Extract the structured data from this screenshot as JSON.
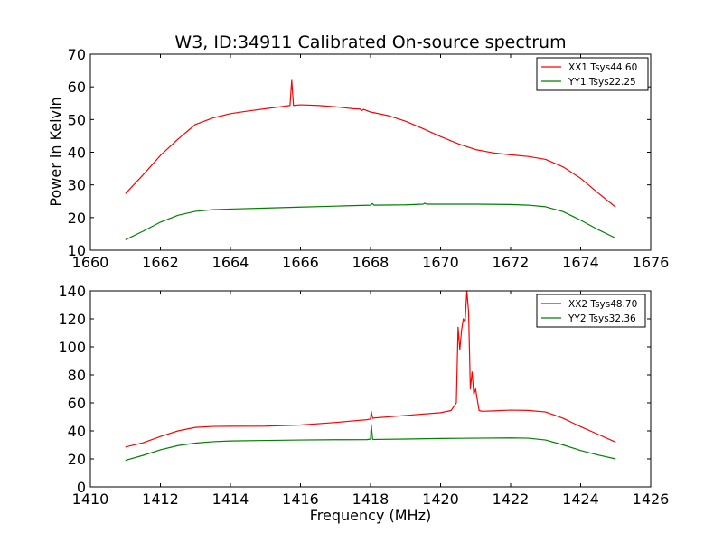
{
  "figure": {
    "title": "W3, ID:34911 Calibrated On-source spectrum",
    "ylabel": "Power in Kelvin",
    "xlabel": "Frequency (MHz)"
  },
  "colors": {
    "red": "#ff0000",
    "green": "#008000"
  },
  "chart_data": [
    {
      "type": "line",
      "title": "W3, ID:34911 Calibrated On-source spectrum",
      "ylabel": "Power in Kelvin",
      "xlabel": "",
      "xlim": [
        1660,
        1676
      ],
      "ylim": [
        10,
        70
      ],
      "xticks": [
        "1660",
        "1662",
        "1664",
        "1666",
        "1668",
        "1670",
        "1672",
        "1674",
        "1676"
      ],
      "yticks": [
        "10",
        "20",
        "30",
        "40",
        "50",
        "60",
        "70"
      ],
      "grid": false,
      "legend_position": "top-right",
      "series": [
        {
          "name": "XX1 Tsys44.60",
          "color": "#ff0000",
          "x": [
            1661.0,
            1661.5,
            1662.0,
            1662.5,
            1663.0,
            1663.5,
            1664.0,
            1664.5,
            1665.0,
            1665.5,
            1665.7,
            1665.75,
            1665.8,
            1666.0,
            1666.5,
            1667.0,
            1667.5,
            1667.7,
            1667.75,
            1667.8,
            1668.0,
            1668.5,
            1669.0,
            1669.5,
            1670.0,
            1670.5,
            1671.0,
            1671.5,
            1672.0,
            1672.5,
            1673.0,
            1673.5,
            1674.0,
            1674.5,
            1675.0
          ],
          "y": [
            27.3,
            33.0,
            39.0,
            44.0,
            48.5,
            50.5,
            51.8,
            52.6,
            53.3,
            54.0,
            54.3,
            62.0,
            54.3,
            54.5,
            54.3,
            53.9,
            53.3,
            53.2,
            52.7,
            53.1,
            52.3,
            51.2,
            49.5,
            47.2,
            44.8,
            42.6,
            40.8,
            39.8,
            39.2,
            38.7,
            37.8,
            35.5,
            32.0,
            27.5,
            23.2
          ]
        },
        {
          "name": "YY1 Tsys22.25",
          "color": "#008000",
          "x": [
            1661.0,
            1661.5,
            1662.0,
            1662.5,
            1663.0,
            1663.5,
            1664.0,
            1665.0,
            1666.0,
            1667.0,
            1668.0,
            1668.05,
            1668.1,
            1669.0,
            1669.5,
            1669.55,
            1669.6,
            1670.0,
            1671.0,
            1672.0,
            1672.5,
            1673.0,
            1673.5,
            1674.0,
            1674.5,
            1675.0
          ],
          "y": [
            13.2,
            15.8,
            18.6,
            20.7,
            21.9,
            22.4,
            22.6,
            22.9,
            23.2,
            23.5,
            23.8,
            24.3,
            23.8,
            23.9,
            24.1,
            24.4,
            24.1,
            24.1,
            24.1,
            24.0,
            23.8,
            23.3,
            21.8,
            19.2,
            16.3,
            13.7
          ]
        }
      ]
    },
    {
      "type": "line",
      "title": "",
      "ylabel": "",
      "xlabel": "Frequency (MHz)",
      "xlim": [
        1410,
        1426
      ],
      "ylim": [
        0,
        140
      ],
      "xticks": [
        "1410",
        "1412",
        "1414",
        "1416",
        "1418",
        "1420",
        "1422",
        "1424",
        "1426"
      ],
      "yticks": [
        "0",
        "20",
        "40",
        "60",
        "80",
        "100",
        "120",
        "140"
      ],
      "grid": false,
      "legend_position": "top-right",
      "series": [
        {
          "name": "XX2 Tsys48.70",
          "color": "#ff0000",
          "x": [
            1411.0,
            1411.5,
            1412.0,
            1412.5,
            1413.0,
            1413.5,
            1414.0,
            1415.0,
            1416.0,
            1417.0,
            1417.9,
            1418.0,
            1418.02,
            1418.06,
            1418.1,
            1419.0,
            1420.0,
            1420.3,
            1420.45,
            1420.5,
            1420.55,
            1420.6,
            1420.65,
            1420.7,
            1420.75,
            1420.8,
            1420.85,
            1420.9,
            1420.95,
            1421.0,
            1421.05,
            1421.1,
            1421.15,
            1421.2,
            1421.5,
            1422.0,
            1422.5,
            1423.0,
            1423.5,
            1424.0,
            1424.5,
            1425.0
          ],
          "y": [
            28.5,
            31.5,
            36.0,
            40.0,
            42.5,
            43.2,
            43.3,
            43.4,
            44.2,
            46.0,
            48.0,
            48.5,
            54.0,
            49.0,
            49.2,
            51.0,
            53.0,
            54.5,
            60.0,
            114.0,
            98.0,
            112.0,
            120.0,
            118.0,
            140.0,
            125.0,
            70.0,
            82.0,
            66.0,
            70.0,
            62.0,
            54.5,
            54.2,
            54.0,
            54.3,
            54.8,
            54.6,
            53.5,
            49.0,
            43.0,
            37.5,
            32.0
          ]
        },
        {
          "name": "YY2 Tsys32.36",
          "color": "#008000",
          "x": [
            1411.0,
            1411.5,
            1412.0,
            1412.5,
            1413.0,
            1413.5,
            1414.0,
            1415.0,
            1416.0,
            1417.0,
            1417.9,
            1418.0,
            1418.02,
            1418.06,
            1418.1,
            1419.0,
            1420.0,
            1421.0,
            1422.0,
            1422.5,
            1423.0,
            1423.5,
            1424.0,
            1424.5,
            1425.0
          ],
          "y": [
            19.0,
            22.5,
            26.5,
            29.5,
            31.3,
            32.3,
            32.8,
            33.2,
            33.5,
            33.7,
            33.8,
            34.2,
            44.5,
            34.0,
            33.9,
            34.2,
            34.6,
            34.8,
            35.0,
            34.8,
            33.5,
            30.0,
            26.0,
            22.8,
            20.0
          ]
        }
      ]
    }
  ]
}
